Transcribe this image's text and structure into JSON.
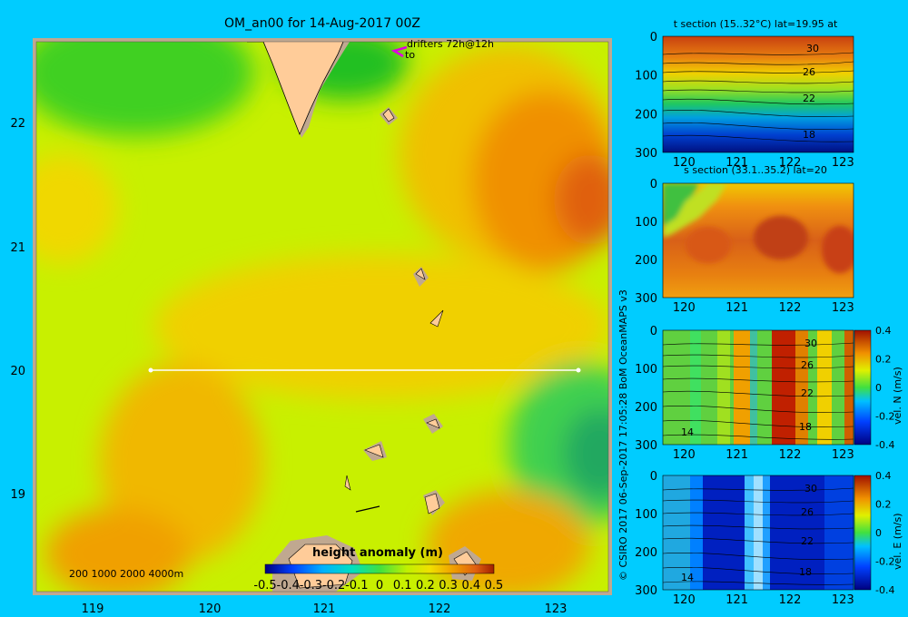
{
  "main_map": {
    "title": "OM_an00 for 14-Aug-2017 00Z",
    "x_ticks": [
      "119",
      "120",
      "121",
      "122",
      "123"
    ],
    "y_ticks": [
      "22",
      "21",
      "20",
      "19"
    ],
    "drifters_label": "drifters 72h@12h",
    "drifters_sub": "to",
    "depth_legend": "200  1000  2000  4000m",
    "colorbar_title": "height anomaly  (m)",
    "colorbar_ticks": [
      "-0.5",
      "-0.4",
      "-0.3",
      "-0.2",
      "-0.1",
      "0",
      "0.1",
      "0.2",
      "0.3",
      "0.4",
      "0.5"
    ],
    "section_line": {
      "lat": 20,
      "lon_start": 119.5,
      "lon_end": 123.2
    }
  },
  "credit": "© CSIRO 2017   06-Sep-2017 17:05:28 BoM OceanMAPS v3",
  "panels": [
    {
      "title": "t section (15..32°C) lat=19.95 at",
      "x_ticks": [
        "120",
        "121",
        "122",
        "123"
      ],
      "y_ticks": [
        "0",
        "100",
        "200",
        "300"
      ],
      "contour_labels": [
        "30",
        "26",
        "22",
        "18"
      ],
      "colorbar_title": "",
      "colorbar_ticks": []
    },
    {
      "title": "s section (33.1..35.2) lat=20",
      "x_ticks": [
        "120",
        "121",
        "122",
        "123"
      ],
      "y_ticks": [
        "0",
        "100",
        "200",
        "300"
      ],
      "contour_labels": [],
      "colorbar_title": "",
      "colorbar_ticks": []
    },
    {
      "title": "",
      "x_ticks": [
        "120",
        "121",
        "122",
        "123"
      ],
      "y_ticks": [
        "0",
        "100",
        "200",
        "300"
      ],
      "contour_labels": [
        "30",
        "26",
        "22",
        "18",
        "14"
      ],
      "colorbar_title": "vel. N (m/s)",
      "colorbar_ticks": [
        "0.4",
        "0.2",
        "0",
        "-0.2",
        "-0.4"
      ]
    },
    {
      "title": "",
      "x_ticks": [
        "120",
        "121",
        "122",
        "123"
      ],
      "y_ticks": [
        "0",
        "100",
        "200",
        "300"
      ],
      "contour_labels": [
        "30",
        "26",
        "22",
        "18",
        "14"
      ],
      "colorbar_title": "vel. E (m/s)",
      "colorbar_ticks": [
        "0.4",
        "0.2",
        "0",
        "-0.2",
        "-0.4"
      ]
    }
  ],
  "chart_data": [
    {
      "type": "heatmap",
      "title": "OM_an00 for 14-Aug-2017 00Z",
      "xlim": [
        118.5,
        123.5
      ],
      "ylim": [
        18.25,
        22.65
      ],
      "colorbar_range": [
        -0.5,
        0.5
      ],
      "colorbar_label": "height anomaly  (m)"
    },
    {
      "type": "heatmap",
      "title": "t section (15..32°C) lat=19.95 at",
      "xlim": [
        119.6,
        123.2
      ],
      "ylim": [
        300,
        0
      ]
    },
    {
      "type": "heatmap",
      "title": "s section (33.1..35.2) lat=20",
      "xlim": [
        119.6,
        123.2
      ],
      "ylim": [
        300,
        0
      ]
    },
    {
      "type": "heatmap",
      "xlim": [
        119.6,
        123.2
      ],
      "ylim": [
        300,
        0
      ],
      "colorbar_range": [
        -0.4,
        0.4
      ],
      "colorbar_label": "vel. N (m/s)"
    },
    {
      "type": "heatmap",
      "xlim": [
        119.6,
        123.2
      ],
      "ylim": [
        300,
        0
      ],
      "colorbar_range": [
        -0.4,
        0.4
      ],
      "colorbar_label": "vel. E (m/s)"
    }
  ]
}
